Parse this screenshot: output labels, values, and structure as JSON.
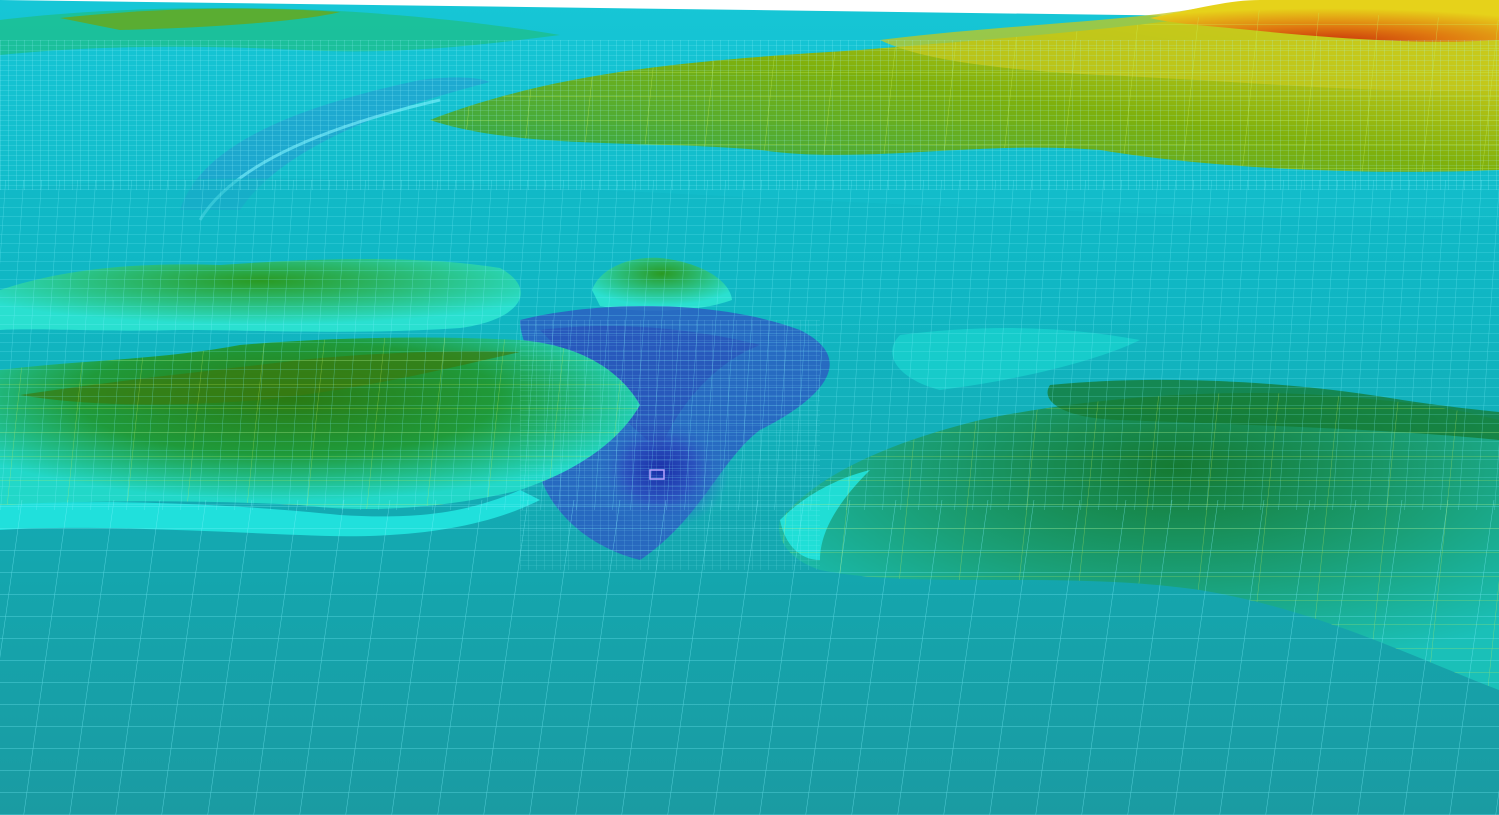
{
  "scene": {
    "kind": "3d-terrain-mesh-render",
    "palette": {
      "deep": "#1a2fa8",
      "trench": "#2f5fc4",
      "shallow": "#1fb0b8",
      "seafloor": "#1a9ea8",
      "cyan": "#22e0f0",
      "green": "#22a85a",
      "darkgreen": "#1c7a2a",
      "olive": "#7fb00c",
      "yellow": "#e6d21a",
      "orange": "#e07a10",
      "red": "#c8320a",
      "sky": "#ffffff",
      "wire_cyan": "#7ff4ff",
      "wire_green": "#c8f25a"
    },
    "colormap_order": [
      "deep",
      "shallow",
      "cyan",
      "green",
      "yellow",
      "orange",
      "red"
    ]
  }
}
